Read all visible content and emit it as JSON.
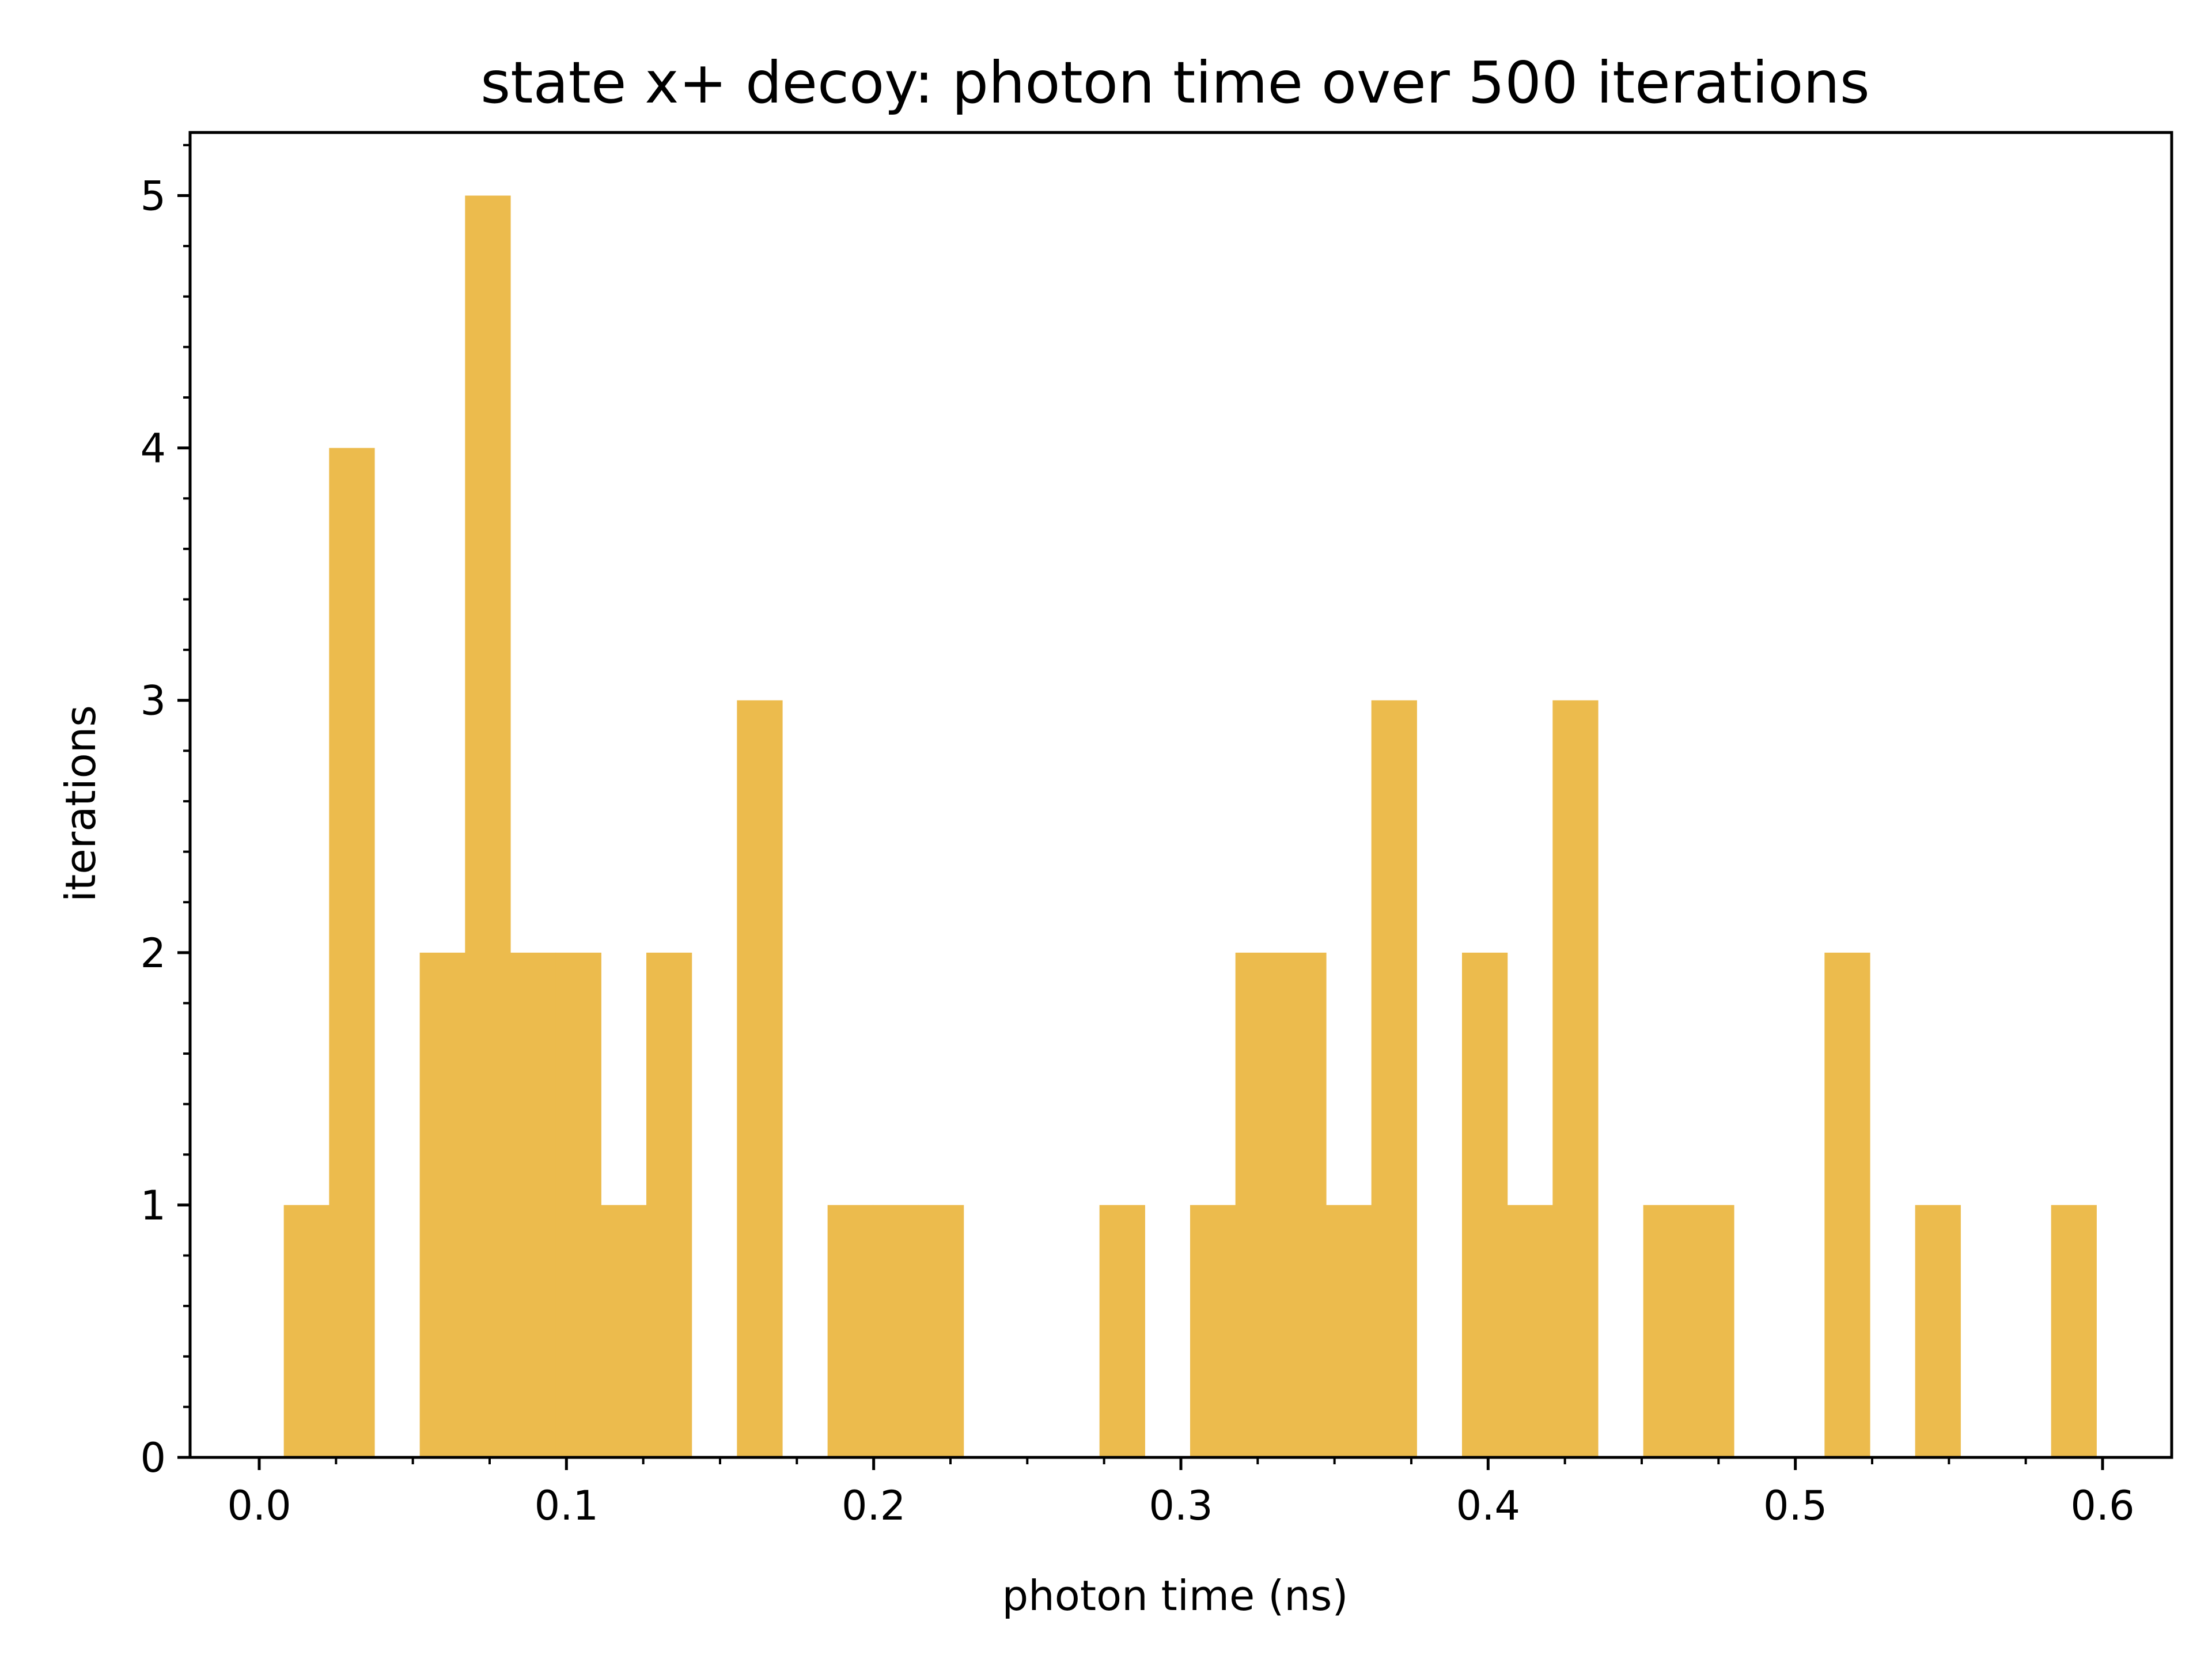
{
  "chart_data": {
    "type": "bar",
    "title": "state x+ decoy: photon time over 500 iterations",
    "xlabel": "photon time (ns)",
    "ylabel": "iterations",
    "xlim": [
      -0.0225,
      0.6225
    ],
    "ylim": [
      0,
      5.25
    ],
    "bin_width": 0.01475,
    "x_ticks": [
      "0.0",
      "0.1",
      "0.2",
      "0.3",
      "0.4",
      "0.5",
      "0.6"
    ],
    "y_ticks": [
      "0",
      "1",
      "2",
      "3",
      "4",
      "5"
    ],
    "bar_color": "#ecbb4d",
    "grid": false,
    "legend": "none",
    "bins": [
      {
        "x": 0.008,
        "count": 1
      },
      {
        "x": 0.02275,
        "count": 4
      },
      {
        "x": 0.0375,
        "count": 0
      },
      {
        "x": 0.05225,
        "count": 2
      },
      {
        "x": 0.067,
        "count": 5
      },
      {
        "x": 0.08175,
        "count": 2
      },
      {
        "x": 0.0965,
        "count": 2
      },
      {
        "x": 0.11125,
        "count": 1
      },
      {
        "x": 0.126,
        "count": 2
      },
      {
        "x": 0.14075,
        "count": 0
      },
      {
        "x": 0.1555,
        "count": 3
      },
      {
        "x": 0.17025,
        "count": 0
      },
      {
        "x": 0.185,
        "count": 1
      },
      {
        "x": 0.19975,
        "count": 1
      },
      {
        "x": 0.2145,
        "count": 1
      },
      {
        "x": 0.22925,
        "count": 0
      },
      {
        "x": 0.244,
        "count": 0
      },
      {
        "x": 0.25875,
        "count": 0
      },
      {
        "x": 0.2735,
        "count": 1
      },
      {
        "x": 0.28825,
        "count": 0
      },
      {
        "x": 0.303,
        "count": 1
      },
      {
        "x": 0.31775,
        "count": 2
      },
      {
        "x": 0.3325,
        "count": 2
      },
      {
        "x": 0.34725,
        "count": 1
      },
      {
        "x": 0.362,
        "count": 3
      },
      {
        "x": 0.37675,
        "count": 0
      },
      {
        "x": 0.3915,
        "count": 2
      },
      {
        "x": 0.40625,
        "count": 1
      },
      {
        "x": 0.421,
        "count": 3
      },
      {
        "x": 0.43575,
        "count": 0
      },
      {
        "x": 0.4505,
        "count": 1
      },
      {
        "x": 0.46525,
        "count": 1
      },
      {
        "x": 0.48,
        "count": 0
      },
      {
        "x": 0.49475,
        "count": 0
      },
      {
        "x": 0.5095,
        "count": 2
      },
      {
        "x": 0.52425,
        "count": 0
      },
      {
        "x": 0.539,
        "count": 1
      },
      {
        "x": 0.55375,
        "count": 0
      },
      {
        "x": 0.5685,
        "count": 0
      },
      {
        "x": 0.58325,
        "count": 1
      }
    ]
  }
}
